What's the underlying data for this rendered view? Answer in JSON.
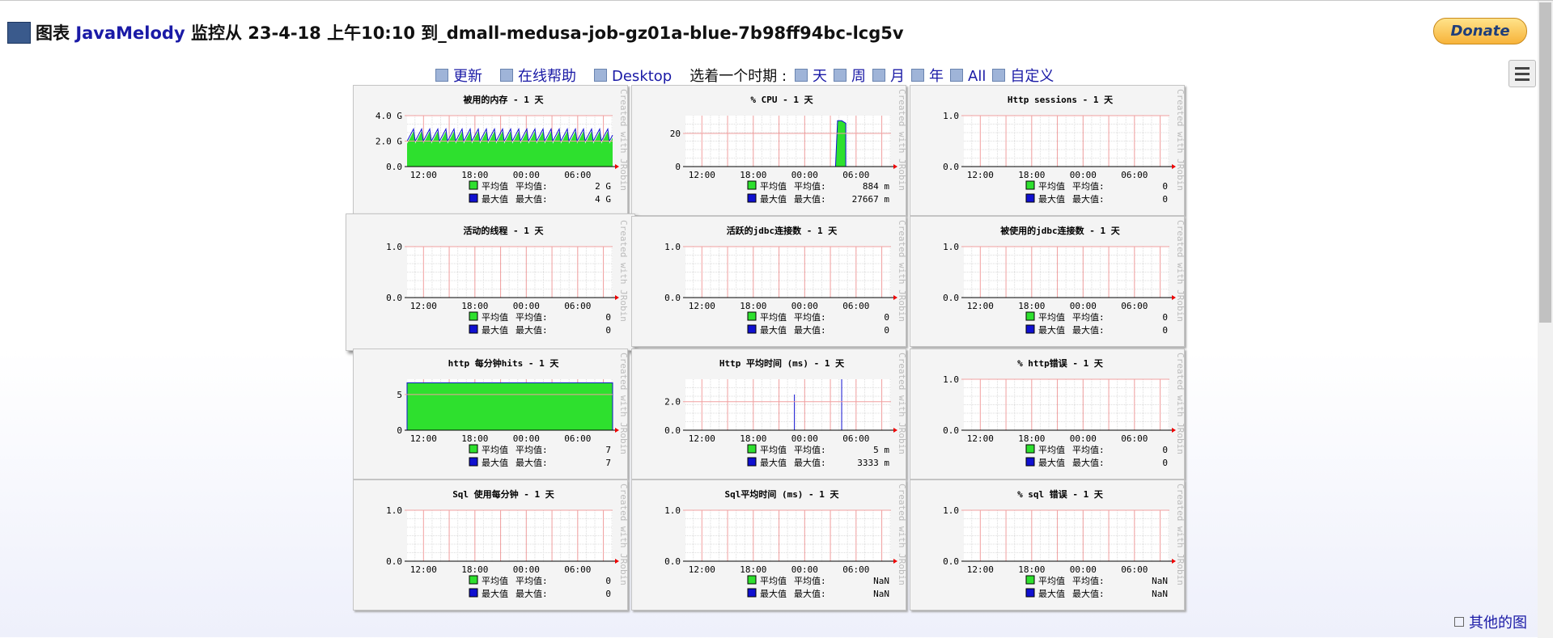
{
  "header": {
    "title_prefix": "图表",
    "brand": "JavaMelody",
    "title_rest": "监控从 23-4-18 上午10:10 到_dmall-medusa-job-gz01a-blue-7b98ff94bc-lcg5v",
    "donate": "Donate"
  },
  "nav": {
    "links": [
      "更新",
      "在线帮助",
      "Desktop"
    ],
    "period_label": "选着一个时期 :",
    "periods": [
      "天",
      "周",
      "月",
      "年",
      "All",
      "自定义"
    ]
  },
  "watermark": "Created with JRobin",
  "charts": [
    {
      "title": "被用的内存 - 1 天",
      "yticks": [
        "0.0",
        "2.0 G",
        "4.0 G"
      ],
      "xticks": [
        "12:00",
        "18:00",
        "00:00",
        "06:00"
      ],
      "legend": [
        {
          "name": "平均值",
          "label": "平均值:",
          "value": "2 G"
        },
        {
          "name": "最大值",
          "label": "最大值:",
          "value": "4 G"
        }
      ]
    },
    {
      "title": "% CPU - 1 天",
      "yticks": [
        "0",
        "20"
      ],
      "xticks": [
        "12:00",
        "18:00",
        "00:00",
        "06:00"
      ],
      "legend": [
        {
          "name": "平均值",
          "label": "平均值:",
          "value": "884 m"
        },
        {
          "name": "最大值",
          "label": "最大值:",
          "value": "27667 m"
        }
      ]
    },
    {
      "title": "Http sessions - 1 天",
      "yticks": [
        "0.0",
        "1.0"
      ],
      "xticks": [
        "12:00",
        "18:00",
        "00:00",
        "06:00"
      ],
      "legend": [
        {
          "name": "平均值",
          "label": "平均值:",
          "value": "0"
        },
        {
          "name": "最大值",
          "label": "最大值:",
          "value": "0"
        }
      ]
    },
    {
      "title": "活动的线程 - 1 天",
      "yticks": [
        "0.0",
        "1.0"
      ],
      "xticks": [
        "12:00",
        "18:00",
        "00:00",
        "06:00"
      ],
      "legend": [
        {
          "name": "平均值",
          "label": "平均值:",
          "value": "0"
        },
        {
          "name": "最大值",
          "label": "最大值:",
          "value": "0"
        }
      ]
    },
    {
      "title": "活跃的jdbc连接数 - 1 天",
      "yticks": [
        "0.0",
        "1.0"
      ],
      "xticks": [
        "12:00",
        "18:00",
        "00:00",
        "06:00"
      ],
      "legend": [
        {
          "name": "平均值",
          "label": "平均值:",
          "value": "0"
        },
        {
          "name": "最大值",
          "label": "最大值:",
          "value": "0"
        }
      ]
    },
    {
      "title": "被使用的jdbc连接数 - 1 天",
      "yticks": [
        "0.0",
        "1.0"
      ],
      "xticks": [
        "12:00",
        "18:00",
        "00:00",
        "06:00"
      ],
      "legend": [
        {
          "name": "平均值",
          "label": "平均值:",
          "value": "0"
        },
        {
          "name": "最大值",
          "label": "最大值:",
          "value": "0"
        }
      ]
    },
    {
      "title": "http 每分钟hits - 1 天",
      "yticks": [
        "0",
        "5"
      ],
      "xticks": [
        "12:00",
        "18:00",
        "00:00",
        "06:00"
      ],
      "legend": [
        {
          "name": "平均值",
          "label": "平均值:",
          "value": "7"
        },
        {
          "name": "最大值",
          "label": "最大值:",
          "value": "7"
        }
      ]
    },
    {
      "title": "Http 平均时间 (ms) - 1 天",
      "yticks": [
        "0.0",
        "2.0"
      ],
      "xticks": [
        "12:00",
        "18:00",
        "00:00",
        "06:00"
      ],
      "legend": [
        {
          "name": "平均值",
          "label": "平均值:",
          "value": "5 m"
        },
        {
          "name": "最大值",
          "label": "最大值:",
          "value": "3333 m"
        }
      ]
    },
    {
      "title": "% http错误 - 1 天",
      "yticks": [
        "0.0",
        "1.0"
      ],
      "xticks": [
        "12:00",
        "18:00",
        "00:00",
        "06:00"
      ],
      "legend": [
        {
          "name": "平均值",
          "label": "平均值:",
          "value": "0"
        },
        {
          "name": "最大值",
          "label": "最大值:",
          "value": "0"
        }
      ]
    },
    {
      "title": "Sql 使用每分钟 - 1 天",
      "yticks": [
        "0.0",
        "1.0"
      ],
      "xticks": [
        "12:00",
        "18:00",
        "00:00",
        "06:00"
      ],
      "legend": [
        {
          "name": "平均值",
          "label": "平均值:",
          "value": "0"
        },
        {
          "name": "最大值",
          "label": "最大值:",
          "value": "0"
        }
      ]
    },
    {
      "title": "Sql平均时间 (ms) - 1 天",
      "yticks": [
        "0.0",
        "1.0"
      ],
      "xticks": [
        "12:00",
        "18:00",
        "00:00",
        "06:00"
      ],
      "legend": [
        {
          "name": "平均值",
          "label": "平均值:",
          "value": "NaN"
        },
        {
          "name": "最大值",
          "label": "最大值:",
          "value": "NaN"
        }
      ]
    },
    {
      "title": "% sql 错误 - 1 天",
      "yticks": [
        "0.0",
        "1.0"
      ],
      "xticks": [
        "12:00",
        "18:00",
        "00:00",
        "06:00"
      ],
      "legend": [
        {
          "name": "平均值",
          "label": "平均值:",
          "value": "NaN"
        },
        {
          "name": "最大值",
          "label": "最大值:",
          "value": "NaN"
        }
      ]
    }
  ],
  "footer": "其他的图"
}
